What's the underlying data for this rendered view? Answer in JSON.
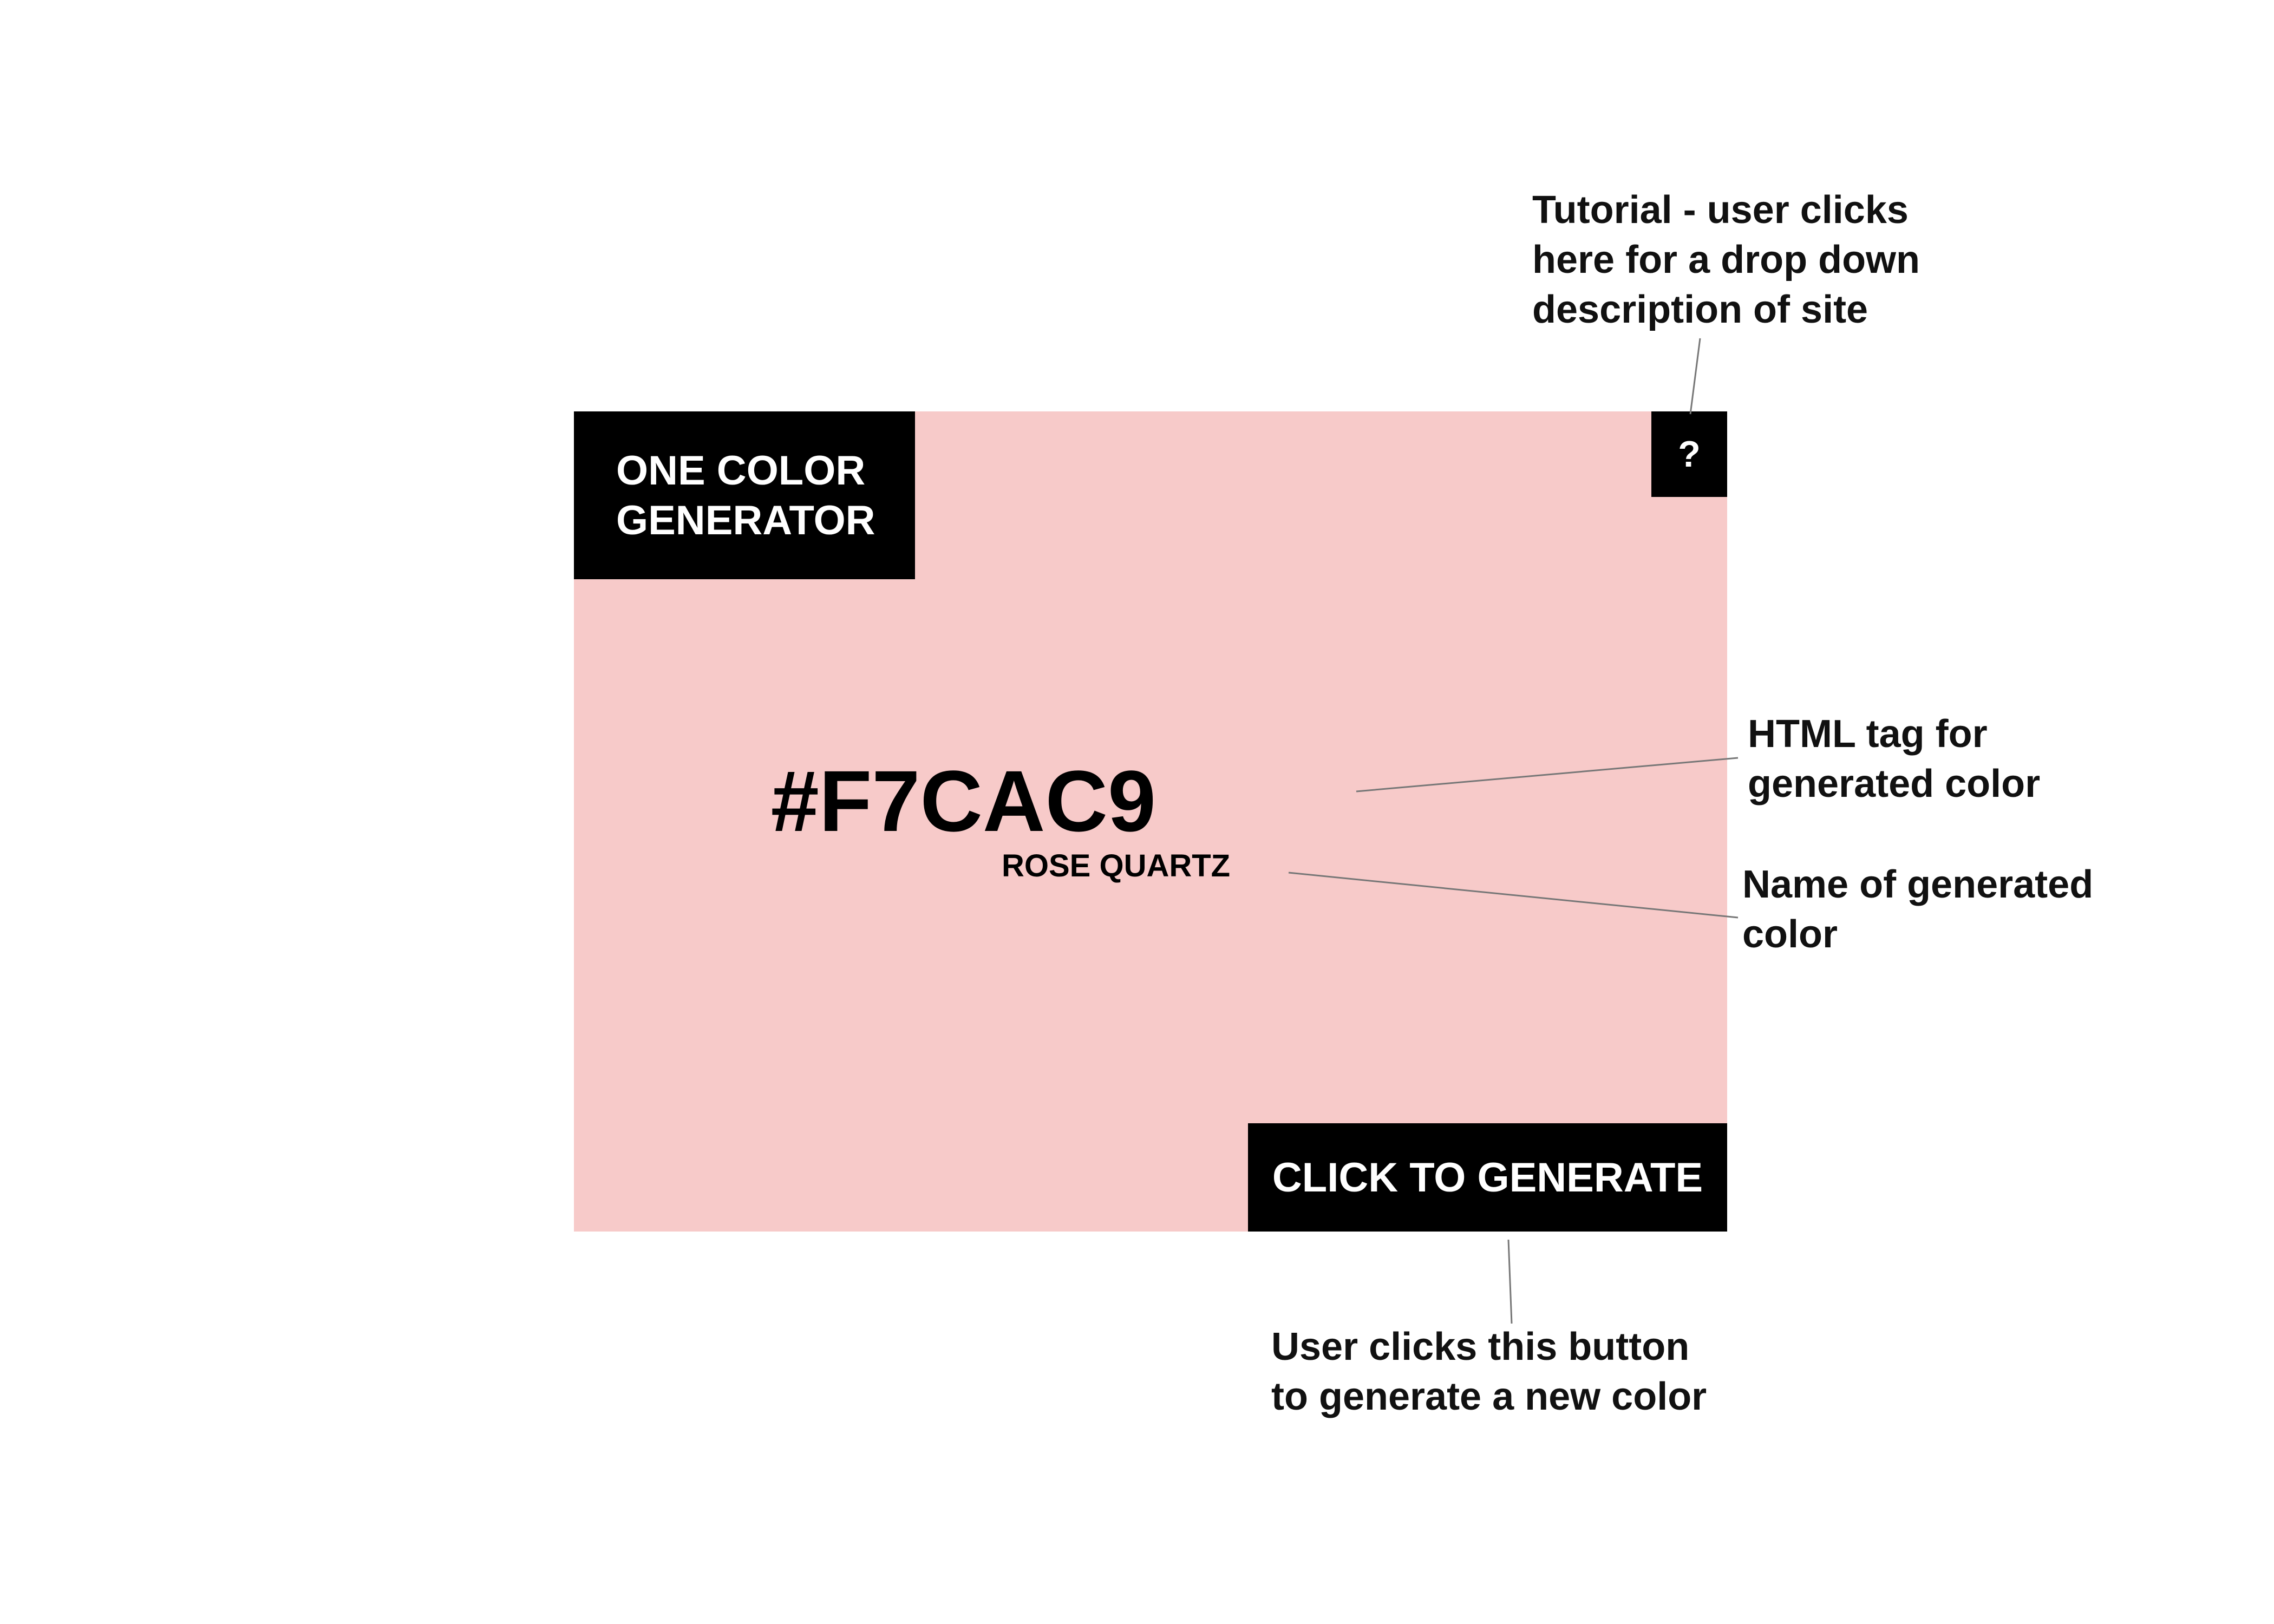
{
  "app": {
    "background_color": "#F7CAC9",
    "logo_lines": [
      "ONE COLOR",
      "GENERATOR"
    ],
    "help_button_label": "?",
    "hex_code": "#F7CAC9",
    "color_name": "ROSE QUARTZ",
    "generate_button_label": "CLICK TO GENERATE"
  },
  "annotations": {
    "tutorial": [
      "Tutorial - user clicks",
      "here for a drop down",
      "description of site"
    ],
    "html_tag": [
      "HTML tag for",
      "generated color"
    ],
    "color_name": [
      "Name of generated",
      "color"
    ],
    "generate": [
      "User clicks this button",
      "to generate a new color"
    ]
  }
}
